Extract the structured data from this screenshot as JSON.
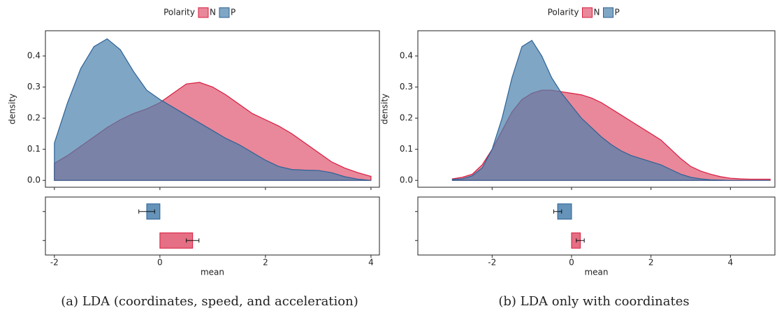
{
  "chart_data": [
    {
      "type": "density",
      "legend_title": "Polarity",
      "ylabel": "density",
      "xlabel": "mean",
      "caption": "(a) LDA (coordinates, speed, and acceleration)",
      "xlim": [
        -2.17,
        4.16
      ],
      "xticks": [
        -2,
        0,
        2,
        4
      ],
      "ylim": [
        -0.022,
        0.481
      ],
      "yticks": [
        {
          "value": 0,
          "label": "0.0"
        },
        0.1,
        0.2,
        0.3,
        0.4
      ],
      "x": [
        -2,
        -1.75,
        -1.5,
        -1.25,
        -1,
        -0.75,
        -0.5,
        -0.25,
        0,
        0.25,
        0.5,
        0.75,
        1,
        1.25,
        1.5,
        1.75,
        2,
        2.25,
        2.5,
        2.75,
        3,
        3.25,
        3.5,
        3.75,
        4
      ],
      "series": [
        {
          "name": "N",
          "color": "#d81b3f",
          "fill": "#e0566f",
          "mean": 0.62,
          "error": 0.12,
          "values": [
            0.055,
            0.08,
            0.11,
            0.14,
            0.17,
            0.195,
            0.215,
            0.23,
            0.25,
            0.28,
            0.31,
            0.315,
            0.3,
            0.275,
            0.245,
            0.215,
            0.195,
            0.175,
            0.15,
            0.12,
            0.09,
            0.06,
            0.04,
            0.025,
            0.013
          ]
        },
        {
          "name": "P",
          "color": "#2c6296",
          "fill": "#4a80ad",
          "mean": -0.25,
          "error": 0.15,
          "values": [
            0.12,
            0.25,
            0.36,
            0.43,
            0.455,
            0.42,
            0.35,
            0.29,
            0.26,
            0.235,
            0.21,
            0.185,
            0.16,
            0.135,
            0.115,
            0.09,
            0.065,
            0.045,
            0.035,
            0.033,
            0.032,
            0.025,
            0.012,
            0.004,
            0
          ]
        }
      ]
    },
    {
      "type": "density",
      "legend_title": "Polarity",
      "ylabel": "density",
      "xlabel": "mean",
      "caption": "(b) LDA only with coordinates",
      "xlim": [
        -3.87,
        5.12
      ],
      "xticks": [
        -2,
        0,
        2,
        4
      ],
      "ylim": [
        -0.022,
        0.481
      ],
      "yticks": [
        {
          "value": 0,
          "label": "0.0"
        },
        0.1,
        0.2,
        0.3,
        0.4
      ],
      "x": [
        -3,
        -2.75,
        -2.5,
        -2.25,
        -2,
        -1.75,
        -1.5,
        -1.25,
        -1,
        -0.75,
        -0.5,
        -0.25,
        0,
        0.25,
        0.5,
        0.75,
        1,
        1.25,
        1.5,
        1.75,
        2,
        2.25,
        2.5,
        2.75,
        3,
        3.25,
        3.5,
        3.75,
        4,
        4.25,
        4.5,
        4.75,
        5
      ],
      "series": [
        {
          "name": "N",
          "color": "#d81b3f",
          "fill": "#e0566f",
          "mean": 0.22,
          "error": 0.1,
          "values": [
            0.005,
            0.01,
            0.02,
            0.05,
            0.1,
            0.16,
            0.22,
            0.26,
            0.28,
            0.29,
            0.29,
            0.285,
            0.28,
            0.275,
            0.265,
            0.25,
            0.23,
            0.21,
            0.19,
            0.17,
            0.15,
            0.13,
            0.1,
            0.07,
            0.045,
            0.03,
            0.02,
            0.012,
            0.007,
            0.005,
            0.004,
            0.004,
            0.004
          ]
        },
        {
          "name": "P",
          "color": "#2c6296",
          "fill": "#4a80ad",
          "mean": -0.35,
          "error": 0.1,
          "values": [
            0.003,
            0.005,
            0.015,
            0.04,
            0.1,
            0.2,
            0.33,
            0.43,
            0.45,
            0.4,
            0.33,
            0.28,
            0.24,
            0.2,
            0.17,
            0.14,
            0.115,
            0.095,
            0.08,
            0.07,
            0.06,
            0.05,
            0.035,
            0.02,
            0.01,
            0.005,
            0.002,
            0.001,
            0,
            0,
            0,
            0,
            0
          ]
        }
      ]
    }
  ]
}
